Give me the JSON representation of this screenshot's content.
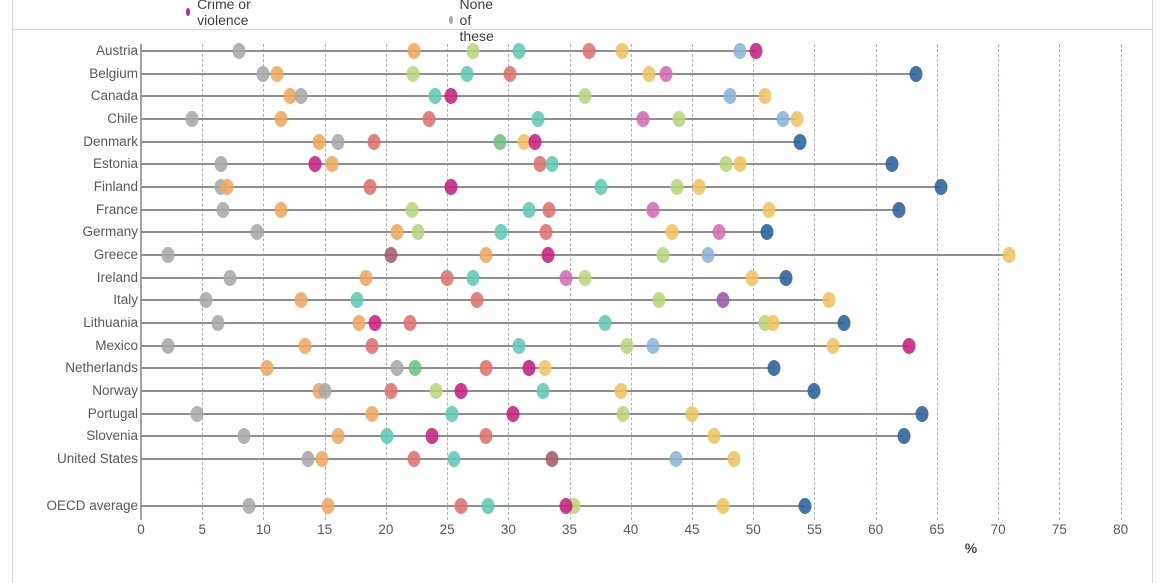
{
  "legend": {
    "items": [
      {
        "label": "Crime or violence",
        "color": "#c91f7f"
      },
      {
        "label": "None of these",
        "color": "#a9a9a9"
      }
    ]
  },
  "axis": {
    "unit_label": "%",
    "tick_labels": [
      "0",
      "5",
      "10",
      "15",
      "20",
      "25",
      "30",
      "35",
      "40",
      "45",
      "50",
      "55",
      "60",
      "65",
      "70",
      "75",
      "80"
    ]
  },
  "chart_data": {
    "type": "scatter",
    "subtype": "horizontal-dot-plot",
    "xlabel": "%",
    "xlim": [
      0,
      80
    ],
    "x_ticks": [
      0,
      5,
      10,
      15,
      20,
      25,
      30,
      35,
      40,
      45,
      50,
      55,
      60,
      65,
      70,
      75,
      80
    ],
    "grid": "dashed-vertical-every-5",
    "legend_position": "top (partially cropped)",
    "legend_entries_visible": [
      {
        "name": "Crime or violence",
        "color_key": "magenta"
      },
      {
        "name": "None of these",
        "color_key": "gray"
      }
    ],
    "palette": {
      "gray": "#a9a9a9",
      "orange": "#f0a85e",
      "red": "#e0716e",
      "magenta": "#c91f7f",
      "pink": "#d56cb2",
      "purple": "#9a5ba8",
      "maroon": "#a75d68",
      "green_light": "#b7d77a",
      "green": "#72c27e",
      "teal": "#5ecab4",
      "lightblue": "#8bb5d8",
      "darkblue": "#28619c",
      "yellow": "#eec45e"
    },
    "rows": [
      {
        "country": "Austria",
        "dots": [
          {
            "c": "gray",
            "v": 8.0
          },
          {
            "c": "orange",
            "v": 22.3
          },
          {
            "c": "green_light",
            "v": 27.1
          },
          {
            "c": "teal",
            "v": 30.9
          },
          {
            "c": "red",
            "v": 36.6
          },
          {
            "c": "yellow",
            "v": 39.3
          },
          {
            "c": "lightblue",
            "v": 48.9
          },
          {
            "c": "magenta",
            "v": 50.2
          }
        ]
      },
      {
        "country": "Belgium",
        "dots": [
          {
            "c": "gray",
            "v": 10.0
          },
          {
            "c": "orange",
            "v": 11.1
          },
          {
            "c": "green_light",
            "v": 22.2
          },
          {
            "c": "teal",
            "v": 26.6
          },
          {
            "c": "red",
            "v": 30.1
          },
          {
            "c": "yellow",
            "v": 41.5
          },
          {
            "c": "pink",
            "v": 42.9
          },
          {
            "c": "darkblue",
            "v": 63.3
          }
        ]
      },
      {
        "country": "Canada",
        "dots": [
          {
            "c": "orange",
            "v": 12.2
          },
          {
            "c": "gray",
            "v": 13.1
          },
          {
            "c": "teal",
            "v": 24.0
          },
          {
            "c": "magenta",
            "v": 25.3
          },
          {
            "c": "green_light",
            "v": 36.3
          },
          {
            "c": "lightblue",
            "v": 48.1
          },
          {
            "c": "yellow",
            "v": 51.0
          }
        ]
      },
      {
        "country": "Chile",
        "dots": [
          {
            "c": "gray",
            "v": 4.2
          },
          {
            "c": "orange",
            "v": 11.4
          },
          {
            "c": "red",
            "v": 23.5
          },
          {
            "c": "teal",
            "v": 32.4
          },
          {
            "c": "pink",
            "v": 41.0
          },
          {
            "c": "green_light",
            "v": 43.9
          },
          {
            "c": "lightblue",
            "v": 52.4
          },
          {
            "c": "yellow",
            "v": 53.6
          }
        ]
      },
      {
        "country": "Denmark",
        "dots": [
          {
            "c": "orange",
            "v": 14.5
          },
          {
            "c": "gray",
            "v": 16.1
          },
          {
            "c": "red",
            "v": 19.0
          },
          {
            "c": "green",
            "v": 29.3
          },
          {
            "c": "yellow",
            "v": 31.3
          },
          {
            "c": "magenta",
            "v": 32.2
          },
          {
            "c": "darkblue",
            "v": 53.8
          }
        ]
      },
      {
        "country": "Estonia",
        "dots": [
          {
            "c": "gray",
            "v": 6.5
          },
          {
            "c": "magenta",
            "v": 14.2
          },
          {
            "c": "orange",
            "v": 15.6
          },
          {
            "c": "red",
            "v": 32.6
          },
          {
            "c": "teal",
            "v": 33.6
          },
          {
            "c": "green_light",
            "v": 47.8
          },
          {
            "c": "yellow",
            "v": 48.9
          },
          {
            "c": "darkblue",
            "v": 61.3
          }
        ]
      },
      {
        "country": "Finland",
        "dots": [
          {
            "c": "gray",
            "v": 6.5
          },
          {
            "c": "orange",
            "v": 7.0
          },
          {
            "c": "red",
            "v": 18.7
          },
          {
            "c": "magenta",
            "v": 25.3
          },
          {
            "c": "teal",
            "v": 37.6
          },
          {
            "c": "green_light",
            "v": 43.8
          },
          {
            "c": "yellow",
            "v": 45.6
          },
          {
            "c": "darkblue",
            "v": 65.3
          }
        ]
      },
      {
        "country": "France",
        "dots": [
          {
            "c": "gray",
            "v": 6.7
          },
          {
            "c": "orange",
            "v": 11.4
          },
          {
            "c": "green_light",
            "v": 22.1
          },
          {
            "c": "teal",
            "v": 31.7
          },
          {
            "c": "red",
            "v": 33.3
          },
          {
            "c": "pink",
            "v": 41.8
          },
          {
            "c": "yellow",
            "v": 51.3
          },
          {
            "c": "darkblue",
            "v": 61.9
          }
        ]
      },
      {
        "country": "Germany",
        "dots": [
          {
            "c": "gray",
            "v": 9.5
          },
          {
            "c": "orange",
            "v": 20.9
          },
          {
            "c": "green_light",
            "v": 22.6
          },
          {
            "c": "teal",
            "v": 29.4
          },
          {
            "c": "red",
            "v": 33.1
          },
          {
            "c": "yellow",
            "v": 43.4
          },
          {
            "c": "pink",
            "v": 47.2
          },
          {
            "c": "darkblue",
            "v": 51.1
          }
        ]
      },
      {
        "country": "Greece",
        "dots": [
          {
            "c": "gray",
            "v": 2.2
          },
          {
            "c": "maroon",
            "v": 20.4
          },
          {
            "c": "orange",
            "v": 28.2
          },
          {
            "c": "magenta",
            "v": 33.2
          },
          {
            "c": "green_light",
            "v": 42.6
          },
          {
            "c": "lightblue",
            "v": 46.3
          },
          {
            "c": "yellow",
            "v": 70.9
          }
        ]
      },
      {
        "country": "Ireland",
        "dots": [
          {
            "c": "gray",
            "v": 7.3
          },
          {
            "c": "orange",
            "v": 18.4
          },
          {
            "c": "red",
            "v": 25.0
          },
          {
            "c": "teal",
            "v": 27.1
          },
          {
            "c": "pink",
            "v": 34.7
          },
          {
            "c": "green_light",
            "v": 36.3
          },
          {
            "c": "yellow",
            "v": 49.9
          },
          {
            "c": "darkblue",
            "v": 52.7
          }
        ]
      },
      {
        "country": "Italy",
        "dots": [
          {
            "c": "gray",
            "v": 5.3
          },
          {
            "c": "orange",
            "v": 13.1
          },
          {
            "c": "teal",
            "v": 17.6
          },
          {
            "c": "red",
            "v": 27.4
          },
          {
            "c": "green_light",
            "v": 42.3
          },
          {
            "c": "purple",
            "v": 47.5
          },
          {
            "c": "yellow",
            "v": 56.2
          }
        ]
      },
      {
        "country": "Lithuania",
        "dots": [
          {
            "c": "gray",
            "v": 6.3
          },
          {
            "c": "orange",
            "v": 17.8
          },
          {
            "c": "magenta",
            "v": 19.1
          },
          {
            "c": "red",
            "v": 22.0
          },
          {
            "c": "teal",
            "v": 37.9
          },
          {
            "c": "green_light",
            "v": 51.0
          },
          {
            "c": "yellow",
            "v": 51.6
          },
          {
            "c": "darkblue",
            "v": 57.4
          }
        ]
      },
      {
        "country": "Mexico",
        "dots": [
          {
            "c": "gray",
            "v": 2.2
          },
          {
            "c": "orange",
            "v": 13.4
          },
          {
            "c": "red",
            "v": 18.9
          },
          {
            "c": "teal",
            "v": 30.9
          },
          {
            "c": "green_light",
            "v": 39.7
          },
          {
            "c": "lightblue",
            "v": 41.8
          },
          {
            "c": "yellow",
            "v": 56.5
          },
          {
            "c": "magenta",
            "v": 62.7
          }
        ]
      },
      {
        "country": "Netherlands",
        "dots": [
          {
            "c": "orange",
            "v": 10.3
          },
          {
            "c": "gray",
            "v": 20.9
          },
          {
            "c": "green",
            "v": 22.4
          },
          {
            "c": "red",
            "v": 28.2
          },
          {
            "c": "magenta",
            "v": 31.7
          },
          {
            "c": "yellow",
            "v": 33.0
          },
          {
            "c": "darkblue",
            "v": 51.7
          }
        ]
      },
      {
        "country": "Norway",
        "dots": [
          {
            "c": "orange",
            "v": 14.5
          },
          {
            "c": "gray",
            "v": 15.0
          },
          {
            "c": "red",
            "v": 20.4
          },
          {
            "c": "green_light",
            "v": 24.1
          },
          {
            "c": "magenta",
            "v": 26.1
          },
          {
            "c": "teal",
            "v": 32.8
          },
          {
            "c": "yellow",
            "v": 39.2
          },
          {
            "c": "darkblue",
            "v": 55.0
          }
        ]
      },
      {
        "country": "Portugal",
        "dots": [
          {
            "c": "gray",
            "v": 4.6
          },
          {
            "c": "orange",
            "v": 18.9
          },
          {
            "c": "teal",
            "v": 25.4
          },
          {
            "c": "magenta",
            "v": 30.4
          },
          {
            "c": "green_light",
            "v": 39.4
          },
          {
            "c": "yellow",
            "v": 45.0
          },
          {
            "c": "darkblue",
            "v": 63.8
          }
        ]
      },
      {
        "country": "Slovenia",
        "dots": [
          {
            "c": "gray",
            "v": 8.4
          },
          {
            "c": "orange",
            "v": 16.1
          },
          {
            "c": "teal",
            "v": 20.1
          },
          {
            "c": "magenta",
            "v": 23.8
          },
          {
            "c": "red",
            "v": 28.2
          },
          {
            "c": "yellow",
            "v": 46.8
          },
          {
            "c": "darkblue",
            "v": 62.3
          }
        ]
      },
      {
        "country": "United States",
        "dots": [
          {
            "c": "gray",
            "v": 13.6
          },
          {
            "c": "orange",
            "v": 14.8
          },
          {
            "c": "red",
            "v": 22.3
          },
          {
            "c": "teal",
            "v": 25.6
          },
          {
            "c": "maroon",
            "v": 33.6
          },
          {
            "c": "lightblue",
            "v": 43.7
          },
          {
            "c": "yellow",
            "v": 48.4
          }
        ]
      },
      {
        "country": "OECD average",
        "dots": [
          {
            "c": "gray",
            "v": 8.8
          },
          {
            "c": "orange",
            "v": 15.3
          },
          {
            "c": "red",
            "v": 26.1
          },
          {
            "c": "teal",
            "v": 28.3
          },
          {
            "c": "green_light",
            "v": 35.4
          },
          {
            "c": "magenta",
            "v": 34.7
          },
          {
            "c": "yellow",
            "v": 47.5
          },
          {
            "c": "darkblue",
            "v": 54.2
          }
        ]
      }
    ]
  }
}
